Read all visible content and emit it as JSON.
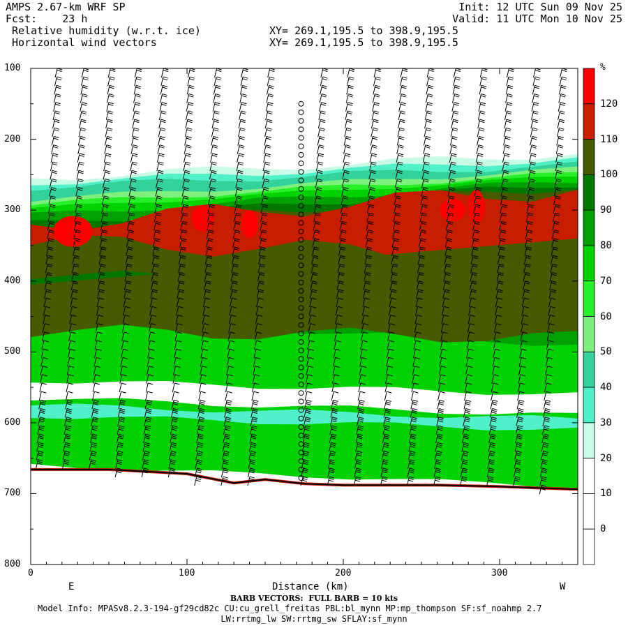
{
  "header": {
    "model": "AMPS 2.67-km WRF SP",
    "fcst": "Fcst:    23 h",
    "field1": "Relative humidity (w.r.t. ice)",
    "field2": "Horizontal wind vectors",
    "xy1": "XY= 269.1,195.5 to 398.9,195.5",
    "xy2": "XY= 269.1,195.5 to 398.9,195.5",
    "init": "Init: 12 UTC Sun 09 Nov 25",
    "valid": "Valid: 11 UTC Mon 10 Nov 25"
  },
  "chart_data": {
    "type": "heatmap",
    "title": "Relative humidity (w.r.t. ice)",
    "xlabel": "Distance (km)",
    "ylabel": "",
    "xlim": [
      0,
      350
    ],
    "ylim": [
      800,
      100
    ],
    "x_ticks": [
      "0",
      "100",
      "200",
      "300"
    ],
    "y_ticks": [
      "100",
      "200",
      "300",
      "400",
      "500",
      "600",
      "700",
      "800"
    ],
    "end_labels": {
      "left": "E",
      "right": "W"
    },
    "colorbar": {
      "unit": "%",
      "levels": [
        "120",
        "110",
        "100",
        "90",
        "80",
        "70",
        "60",
        "50",
        "40",
        "30",
        "20",
        "10",
        "0"
      ],
      "colors": [
        "#ff0000",
        "#c81e00",
        "#465a00",
        "#007800",
        "#00a000",
        "#00d200",
        "#28f028",
        "#7ef07e",
        "#32d29a",
        "#50f0c8",
        "#c8fae6",
        "#ffffff",
        "#ffffff",
        "#ffffff"
      ]
    }
  },
  "footer": {
    "barb": "BARB VECTORS:  FULL BARB = 10 kts",
    "model_info": "Model Info: MPASv8.2.3-194-gf29cd82c CU:cu_grell_freitas PBL:bl_mynn MP:mp_thompson SF:sf_noahmp 2.7",
    "model_info2": "LW:rrtmg_lw SW:rrtmg_sw SFLAY:sf_mynn"
  }
}
